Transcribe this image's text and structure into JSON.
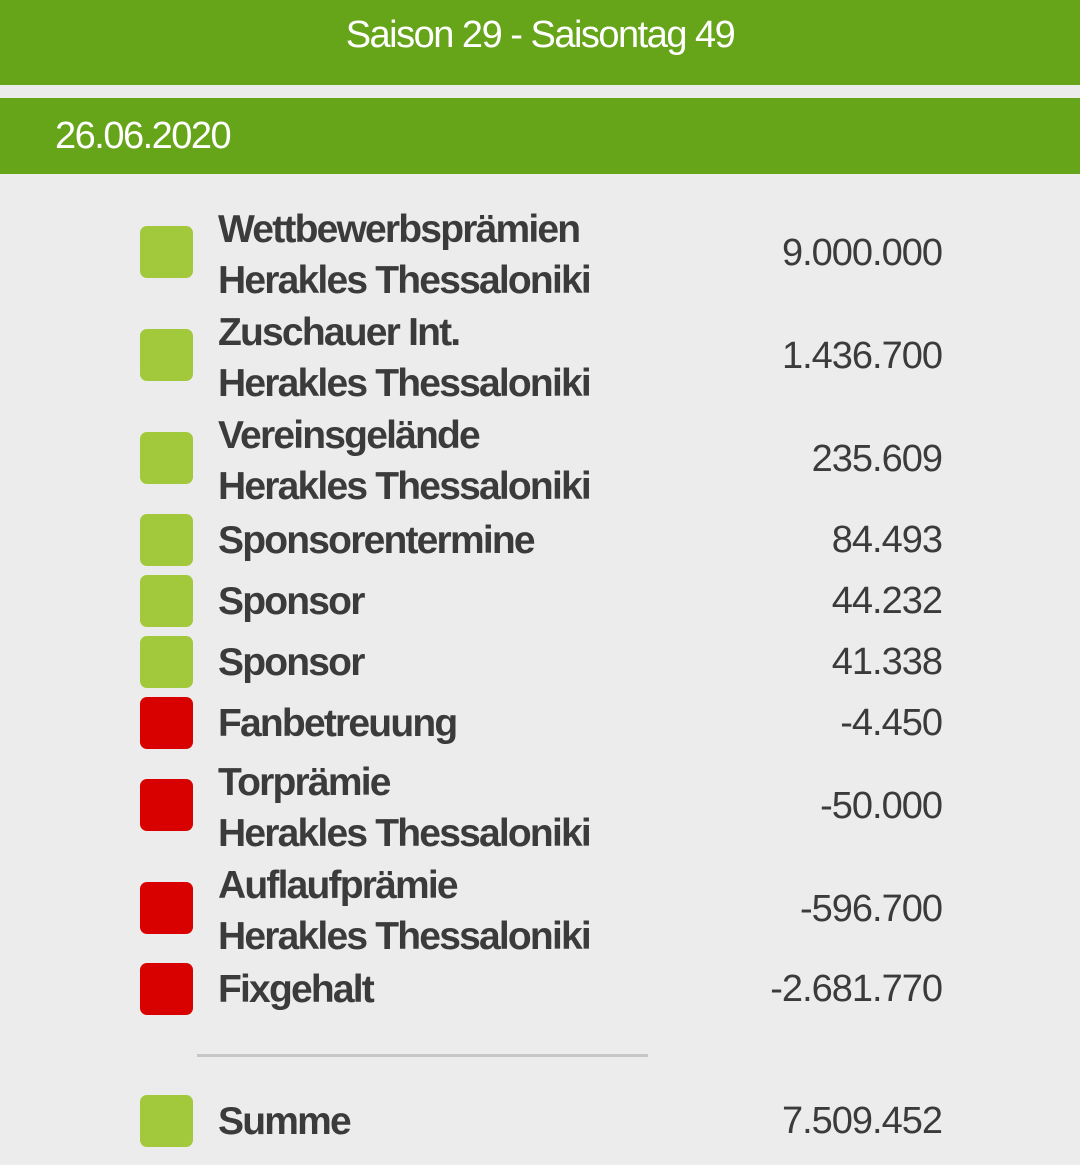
{
  "header": {
    "title": "Saison 29 - Saisontag 49",
    "date": "26.06.2020"
  },
  "colors": {
    "header_green": "#66a51a",
    "positive": "#a2c93c",
    "negative": "#d90000",
    "background": "#ececec"
  },
  "entries": [
    {
      "label": "Wettbewerbsprämien",
      "sublabel": "Herakles Thessaloniki",
      "value": "9.000.000",
      "type": "positive"
    },
    {
      "label": "Zuschauer Int.",
      "sublabel": "Herakles Thessaloniki",
      "value": "1.436.700",
      "type": "positive"
    },
    {
      "label": "Vereinsgelände",
      "sublabel": "Herakles Thessaloniki",
      "value": "235.609",
      "type": "positive"
    },
    {
      "label": "Sponsorentermine",
      "sublabel": "",
      "value": "84.493",
      "type": "positive"
    },
    {
      "label": "Sponsor",
      "sublabel": "",
      "value": "44.232",
      "type": "positive"
    },
    {
      "label": "Sponsor",
      "sublabel": "",
      "value": "41.338",
      "type": "positive"
    },
    {
      "label": "Fanbetreuung",
      "sublabel": "",
      "value": "-4.450",
      "type": "negative"
    },
    {
      "label": "Torprämie",
      "sublabel": "Herakles Thessaloniki",
      "value": "-50.000",
      "type": "negative"
    },
    {
      "label": "Auflaufprämie",
      "sublabel": "Herakles Thessaloniki",
      "value": "-596.700",
      "type": "negative"
    },
    {
      "label": "Fixgehalt",
      "sublabel": "",
      "value": "-2.681.770",
      "type": "negative"
    }
  ],
  "total": {
    "label": "Summe",
    "value": "7.509.452",
    "type": "positive"
  }
}
